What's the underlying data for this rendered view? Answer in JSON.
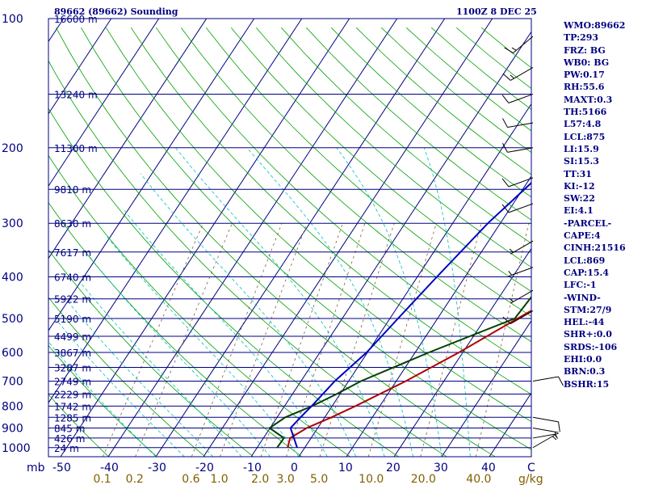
{
  "header": {
    "station": "89662 (89662) Sounding",
    "time": "1100Z  8 DEC 25"
  },
  "chart_data": {
    "type": "skewt",
    "title": "89662 (89662) Sounding",
    "valid_time": "1100Z  8 DEC 25",
    "pressure_unit": "mb",
    "mixing_ratio_unit": "g/kg",
    "pressure_ticks": [
      "100",
      "200",
      "300",
      "400",
      "500",
      "600",
      "700",
      "800",
      "900",
      "1000"
    ],
    "temperature_ticks": [
      "-50",
      "-40",
      "-30",
      "-20",
      "-10",
      "0",
      "10",
      "20",
      "30",
      "40"
    ],
    "mixing_ratio_ticks": [
      "0.1",
      "0.2",
      "0.6",
      "1.0",
      "2.0",
      "3.0",
      "5.0",
      "10.0",
      "20.0",
      "40.0"
    ],
    "height_labels": [
      {
        "p": 100,
        "label": "16600 m"
      },
      {
        "p": 150,
        "label": "13240 m"
      },
      {
        "p": 200,
        "label": "11300 m"
      },
      {
        "p": 250,
        "label": "9810 m"
      },
      {
        "p": 300,
        "label": "8630 m"
      },
      {
        "p": 350,
        "label": "7617 m"
      },
      {
        "p": 400,
        "label": "6740 m"
      },
      {
        "p": 450,
        "label": "5922 m"
      },
      {
        "p": 500,
        "label": "5190 m"
      },
      {
        "p": 550,
        "label": "4499 m"
      },
      {
        "p": 600,
        "label": "3867 m"
      },
      {
        "p": 650,
        "label": "3287 m"
      },
      {
        "p": 700,
        "label": "2749 m"
      },
      {
        "p": 750,
        "label": "2229 m"
      },
      {
        "p": 800,
        "label": "1742 m"
      },
      {
        "p": 850,
        "label": "1285 m"
      },
      {
        "p": 900,
        "label": "845 m"
      },
      {
        "p": 950,
        "label": "426 m"
      },
      {
        "p": 1000,
        "label": "24 m"
      }
    ],
    "series": [
      {
        "name": "temperature",
        "color": "#b00000",
        "points": [
          {
            "p": 1000,
            "t": -3.6
          },
          {
            "p": 950,
            "t": -4.4
          },
          {
            "p": 900,
            "t": -2.3
          },
          {
            "p": 850,
            "t": 1.4
          },
          {
            "p": 800,
            "t": 4.9
          },
          {
            "p": 700,
            "t": 12.0
          },
          {
            "p": 600,
            "t": 19.2
          },
          {
            "p": 500,
            "t": 26.8
          },
          {
            "p": 400,
            "t": 36.4
          },
          {
            "p": 300,
            "t": 48.4
          },
          {
            "p": 250,
            "t": 59.6
          },
          {
            "p": 200,
            "t": 74.3
          },
          {
            "p": 150,
            "t": 93.6
          },
          {
            "p": 100,
            "t": 123.0
          }
        ]
      },
      {
        "name": "dewpoint",
        "color": "#004000",
        "points": [
          {
            "p": 1000,
            "t": -5.8
          },
          {
            "p": 950,
            "t": -5.7
          },
          {
            "p": 900,
            "t": -10.1
          },
          {
            "p": 850,
            "t": -8.3
          },
          {
            "p": 800,
            "t": -4.2
          },
          {
            "p": 750,
            "t": -0.7
          },
          {
            "p": 700,
            "t": 2.6
          },
          {
            "p": 600,
            "t": 12.9
          },
          {
            "p": 500,
            "t": 26.2
          },
          {
            "p": 400,
            "t": 27.2
          },
          {
            "p": 300,
            "t": 45.2
          },
          {
            "p": 280,
            "t": 43.4
          },
          {
            "p": 250,
            "t": 40.2
          },
          {
            "p": 200,
            "t": 60.9
          },
          {
            "p": 150,
            "t": 86.2
          },
          {
            "p": 100,
            "t": 113.0
          }
        ]
      },
      {
        "name": "parcel",
        "color": "#0000c0",
        "points": [
          {
            "p": 1000,
            "t": -1.6
          },
          {
            "p": 900,
            "t": -5.7
          },
          {
            "p": 850,
            "t": -5.1
          },
          {
            "p": 800,
            "t": -4.3
          },
          {
            "p": 700,
            "t": -2.9
          },
          {
            "p": 600,
            "t": -0.2
          },
          {
            "p": 500,
            "t": 1.7
          },
          {
            "p": 400,
            "t": 4.1
          },
          {
            "p": 300,
            "t": 7.4
          },
          {
            "p": 200,
            "t": 14.0
          },
          {
            "p": 140,
            "t": 20.0
          }
        ]
      }
    ],
    "wind_barbs": [
      {
        "p": 110,
        "dir": 230,
        "kt": 15
      },
      {
        "p": 130,
        "dir": 240,
        "kt": 15
      },
      {
        "p": 150,
        "dir": 250,
        "kt": 10
      },
      {
        "p": 175,
        "dir": 260,
        "kt": 10
      },
      {
        "p": 200,
        "dir": 260,
        "kt": 10
      },
      {
        "p": 235,
        "dir": 250,
        "kt": 10
      },
      {
        "p": 270,
        "dir": 250,
        "kt": 10
      },
      {
        "p": 330,
        "dir": 240,
        "kt": 5
      },
      {
        "p": 380,
        "dir": 250,
        "kt": 5
      },
      {
        "p": 430,
        "dir": 240,
        "kt": 5
      },
      {
        "p": 480,
        "dir": 240,
        "kt": 10
      },
      {
        "p": 700,
        "dir": 80,
        "kt": 10
      },
      {
        "p": 850,
        "dir": 100,
        "kt": 10
      },
      {
        "p": 900,
        "dir": 100,
        "kt": 5
      },
      {
        "p": 950,
        "dir": 80,
        "kt": 5
      },
      {
        "p": 1000,
        "dir": 60,
        "kt": 5
      }
    ]
  },
  "indices": [
    "WMO:89662",
    "TP:293",
    "FRZ: BG",
    "WB0: BG",
    "PW:0.17",
    "RH:55.6",
    "MAXT:0.3",
    "TH:5166",
    "L57:4.8",
    "LCL:875",
    "LI:15.9",
    "SI:15.3",
    "TT:31",
    "KI:-12",
    "SW:22",
    "EI:4.1",
    "-PARCEL-",
    "CAPE:4",
    "CINH:21516",
    "LCL:869",
    "CAP:15.4",
    "LFC:-1",
    "-WIND-",
    "STM:27/9",
    "HEL:-44",
    "SHR+:0.0",
    "SRDS:-106",
    "EHI:0.0",
    "BRN:0.3",
    "BSHR:15"
  ],
  "colors": {
    "isobar": "#000080",
    "isotherm": "#000080",
    "dry_adiabat": "#00a000",
    "moist_adiabat": "#00c0c0",
    "mixing_ratio": "#806040",
    "tick_label": "#000080",
    "mix_label": "#806000"
  }
}
